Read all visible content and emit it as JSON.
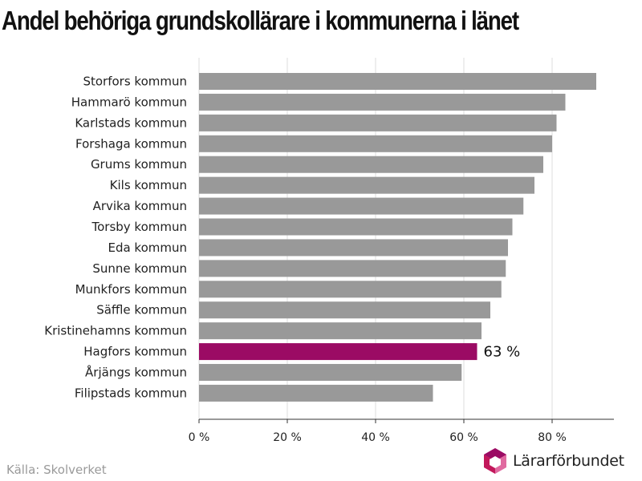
{
  "chart_data": {
    "type": "bar",
    "orientation": "horizontal",
    "title": "Andel behöriga grundskollärare i kommunerna i länet",
    "categories": [
      "Storfors kommun",
      "Hammarö kommun",
      "Karlstads kommun",
      "Forshaga kommun",
      "Grums kommun",
      "Kils kommun",
      "Arvika kommun",
      "Torsby kommun",
      "Eda kommun",
      "Sunne kommun",
      "Munkfors kommun",
      "Säffle kommun",
      "Kristinehamns kommun",
      "Hagfors kommun",
      "Årjängs kommun",
      "Filipstads kommun"
    ],
    "values": [
      90,
      83,
      81,
      80,
      78,
      76,
      73.5,
      71,
      70,
      69.5,
      68.5,
      66,
      64,
      63,
      59.5,
      53
    ],
    "highlight": {
      "category": "Hagfors kommun",
      "label": "63 %",
      "color": "#9b0b64"
    },
    "bar_color": "#999999",
    "xlim": [
      0,
      94
    ],
    "xticks": [
      0,
      20,
      40,
      60,
      80
    ],
    "xtick_labels": [
      "0 %",
      "20 %",
      "40 %",
      "60 %",
      "80 %"
    ],
    "grid": true,
    "xlabel": "",
    "ylabel": ""
  },
  "footer": {
    "source": "Källa: Skolverket",
    "logo_text": "Lärarförbundet"
  },
  "colors": {
    "logo_dark": "#9b0b64",
    "logo_mid": "#c2185b",
    "logo_light": "#e06aa0"
  },
  "icons": {
    "logo": "lararforbundet-logo-icon"
  }
}
